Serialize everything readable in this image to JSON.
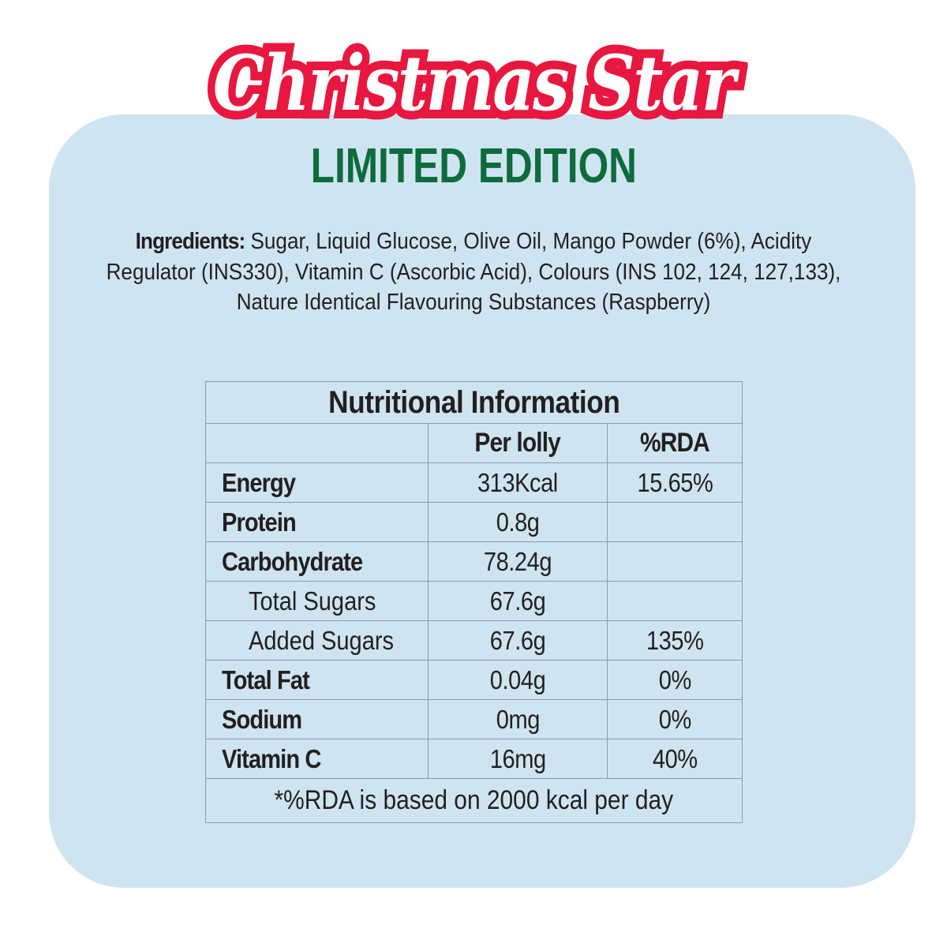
{
  "brand": {
    "title": "Christmas Star",
    "subtitle": "LIMITED EDITION",
    "colors": {
      "title_fill": "#ffffff",
      "title_outline": "#e8173f",
      "subtitle": "#0e6b3b",
      "panel": "#cfe4f1",
      "background": "#ffffff",
      "table_border": "#8d9ba7",
      "text": "#231f20"
    }
  },
  "ingredients": {
    "label": "Ingredients:",
    "text": "Sugar, Liquid Glucose, Olive Oil, Mango Powder (6%), Acidity Regulator (INS330), Vitamin C (Ascorbic Acid), Colours (INS 102, 124, 127,133), Nature Identical Flavouring Substances (Raspberry)"
  },
  "nutrition": {
    "title": "Nutritional Information",
    "columns": [
      "",
      "Per lolly",
      "%RDA"
    ],
    "rows": [
      {
        "label": "Energy",
        "per_lolly": "313Kcal",
        "rda": "15.65%",
        "style": "bold"
      },
      {
        "label": "Protein",
        "per_lolly": "0.8g",
        "rda": "",
        "style": "bold"
      },
      {
        "label": "Carbohydrate",
        "per_lolly": "78.24g",
        "rda": "",
        "style": "bold"
      },
      {
        "label": "Total Sugars",
        "per_lolly": "67.6g",
        "rda": "",
        "style": "sub"
      },
      {
        "label": "Added Sugars",
        "per_lolly": "67.6g",
        "rda": "135%",
        "style": "sub"
      },
      {
        "label": "Total Fat",
        "per_lolly": "0.04g",
        "rda": "0%",
        "style": "bold"
      },
      {
        "label": "Sodium",
        "per_lolly": "0mg",
        "rda": "0%",
        "style": "bold"
      },
      {
        "label": "Vitamin C",
        "per_lolly": "16mg",
        "rda": "40%",
        "style": "bold"
      }
    ],
    "footnote": "*%RDA is based on 2000 kcal per day"
  }
}
